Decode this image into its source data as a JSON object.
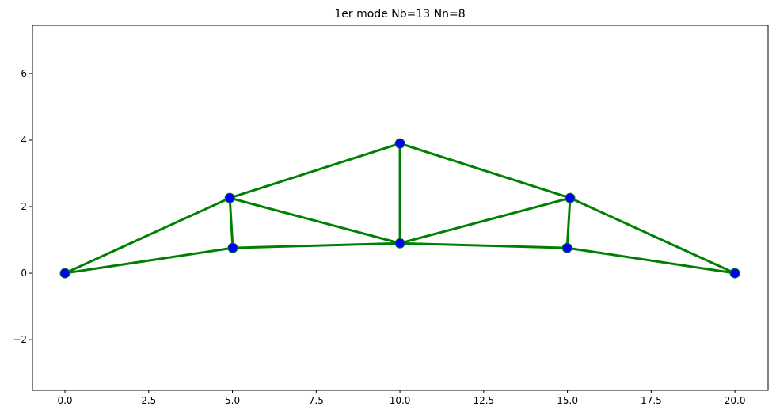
{
  "chart_data": {
    "type": "truss",
    "title": "1er mode Nb=13 Nn=8",
    "nodes": {
      "x": [
        0,
        4.92,
        5.01,
        10,
        10,
        15.08,
        14.99,
        20
      ],
      "y": [
        0,
        2.26,
        0.76,
        3.9,
        0.9,
        2.26,
        0.76,
        0
      ]
    },
    "bars": [
      [
        0,
        1
      ],
      [
        0,
        2
      ],
      [
        1,
        2
      ],
      [
        1,
        3
      ],
      [
        1,
        4
      ],
      [
        2,
        4
      ],
      [
        3,
        4
      ],
      [
        3,
        5
      ],
      [
        4,
        5
      ],
      [
        4,
        6
      ],
      [
        5,
        6
      ],
      [
        5,
        7
      ],
      [
        6,
        7
      ]
    ],
    "node_color": "#0000ff",
    "node_edge_color": "#008000",
    "bar_color": "#008000",
    "xlim": [
      -0.97,
      20.99
    ],
    "ylim": [
      -3.52,
      7.45
    ],
    "xticks": [
      {
        "value": 0,
        "label": "0.0"
      },
      {
        "value": 2.5,
        "label": "2.5"
      },
      {
        "value": 5,
        "label": "5.0"
      },
      {
        "value": 7.5,
        "label": "7.5"
      },
      {
        "value": 10,
        "label": "10.0"
      },
      {
        "value": 12.5,
        "label": "12.5"
      },
      {
        "value": 15,
        "label": "15.0"
      },
      {
        "value": 17.5,
        "label": "17.5"
      },
      {
        "value": 20,
        "label": "20.0"
      }
    ],
    "yticks": [
      {
        "value": -2,
        "label": "−2"
      },
      0,
      2,
      4,
      6
    ]
  }
}
